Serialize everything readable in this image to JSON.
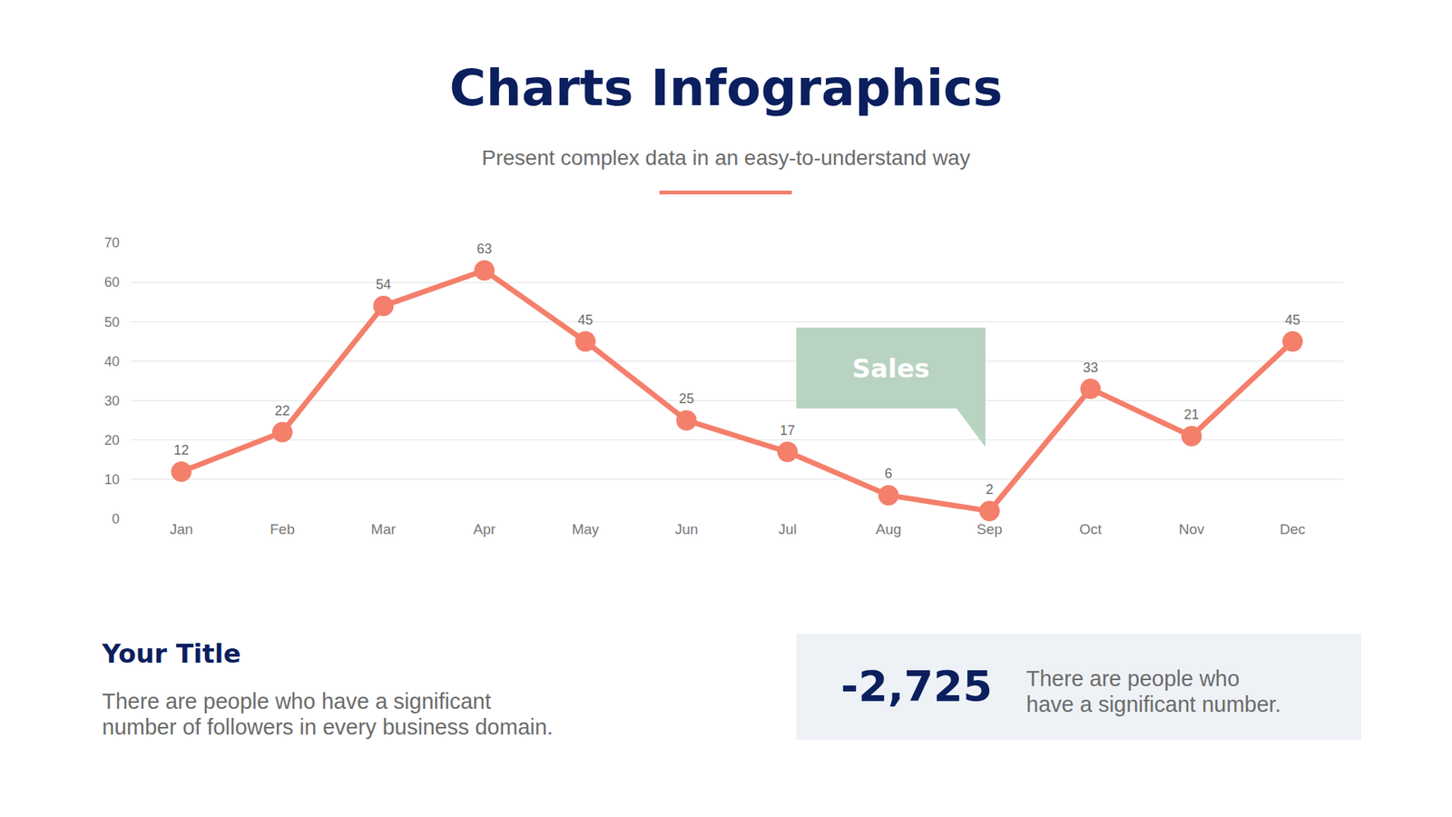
{
  "header": {
    "title": "Charts Infographics",
    "subtitle": "Present complex data in an easy-to-understand way"
  },
  "chart_data": {
    "type": "line",
    "categories": [
      "Jan",
      "Feb",
      "Mar",
      "Apr",
      "May",
      "Jun",
      "Jul",
      "Aug",
      "Sep",
      "Oct",
      "Nov",
      "Dec"
    ],
    "series": [
      {
        "name": "Sales",
        "color": "#f47f6b",
        "marker": "circle",
        "line_style": "solid",
        "values": [
          12,
          22,
          54,
          63,
          45,
          25,
          17,
          6,
          2,
          33,
          21,
          45
        ]
      }
    ],
    "ylim": [
      0,
      70
    ],
    "yticks": [
      0,
      10,
      20,
      30,
      40,
      50,
      60,
      70
    ],
    "grid": true,
    "data_labels": true
  },
  "footer": {
    "left": {
      "title": "Your Title",
      "text": [
        "There are people who have a significant",
        "number of followers in every business domain."
      ]
    },
    "right": {
      "stat": "-2,725",
      "text": [
        "There are people who",
        "have a significant number."
      ]
    }
  }
}
